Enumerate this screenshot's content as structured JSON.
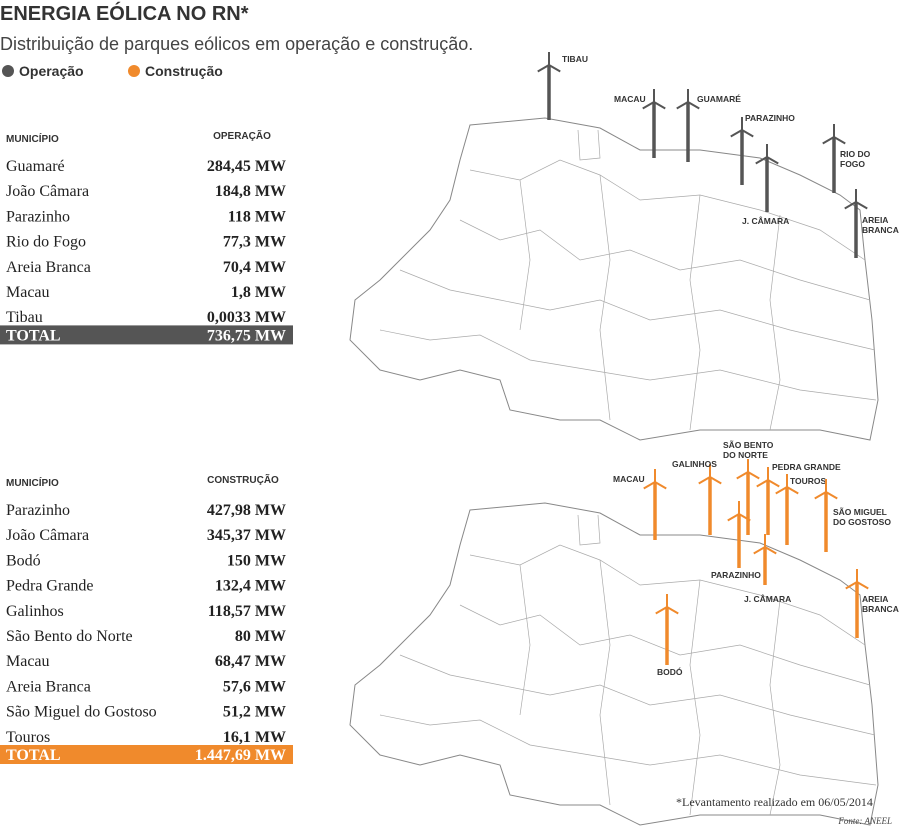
{
  "header": {
    "title": "ENERGIA EÓLICA NO RN*",
    "subtitle": "Distribuição de parques eólicos em operação e construção.",
    "legend": [
      {
        "label": "Operação",
        "color": "#555555"
      },
      {
        "label": "Construção",
        "color": "#f08a2c"
      }
    ]
  },
  "operation": {
    "table": {
      "headers": [
        "MUNICÍPIO",
        "OPERAÇÃO"
      ],
      "rows": [
        [
          "Guamaré",
          "284,45 MW"
        ],
        [
          "João Câmara",
          "184,8 MW"
        ],
        [
          "Parazinho",
          "118 MW"
        ],
        [
          "Rio do Fogo",
          "77,3 MW"
        ],
        [
          "Areia Branca",
          "70,4 MW"
        ],
        [
          "Macau",
          "1,8 MW"
        ],
        [
          "Tibau",
          "0,0033 MW"
        ]
      ],
      "total": [
        "TOTAL",
        "736,75 MW"
      ]
    },
    "map_labels": [
      [
        "TIBAU"
      ],
      [
        "MACAU"
      ],
      [
        "GUAMARÉ"
      ],
      [
        "PARAZINHO"
      ],
      [
        "J. CÂMARA"
      ],
      [
        "RIO DO",
        "FOGO"
      ],
      [
        "AREIA",
        "BRANCA"
      ]
    ]
  },
  "construction": {
    "table": {
      "headers": [
        "MUNICÍPIO",
        "CONSTRUÇÃO"
      ],
      "rows": [
        [
          "Parazinho",
          "427,98 MW"
        ],
        [
          "João Câmara",
          "345,37 MW"
        ],
        [
          "Bodó",
          "150 MW"
        ],
        [
          "Pedra Grande",
          "132,4 MW"
        ],
        [
          "Galinhos",
          "118,57 MW"
        ],
        [
          "São Bento do Norte",
          "80 MW"
        ],
        [
          "Macau",
          "68,47 MW"
        ],
        [
          "Areia Branca",
          "57,6 MW"
        ],
        [
          "São Miguel do Gostoso",
          "51,2 MW"
        ],
        [
          "Touros",
          "16,1 MW"
        ]
      ],
      "total": [
        "TOTAL",
        "1.447,69 MW"
      ]
    },
    "map_labels": [
      [
        "MACAU"
      ],
      [
        "GALINHOS"
      ],
      [
        "SÃO BENTO",
        "DO NORTE"
      ],
      [
        "PEDRA GRANDE"
      ],
      [
        "TOUROS"
      ],
      [
        "SÃO MIGUEL",
        "DO GOSTOSO"
      ],
      [
        "PARAZINHO"
      ],
      [
        "J. CÂMARA"
      ],
      [
        "AREIA",
        "BRANCA"
      ],
      [
        "BODÓ"
      ]
    ]
  },
  "footer": {
    "note": "*Levantamento realizado em 06/05/2014",
    "source": "Fonte: ANEEL"
  }
}
